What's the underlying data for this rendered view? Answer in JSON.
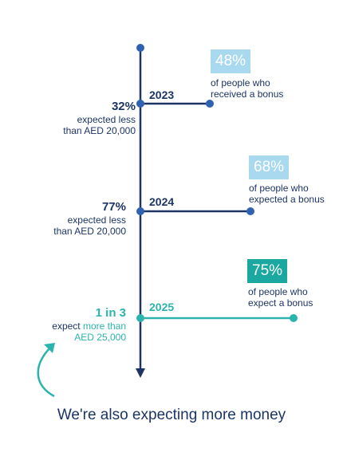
{
  "colors": {
    "navy": "#1d3565",
    "blue": "#2f63b2",
    "light_box": "#a8d9ef",
    "teal": "#2bb3ad",
    "teal_box": "#1aa8a0"
  },
  "timeline": [
    {
      "year": "2023",
      "left_stat": "32%",
      "left_line1": "expected less",
      "left_line2": "than AED 20,000",
      "right_pct": "48%",
      "right_line1": "of people who",
      "right_line2": "received a bonus"
    },
    {
      "year": "2024",
      "left_stat": "77%",
      "left_line1": "expected less",
      "left_line2": "than AED 20,000",
      "right_pct": "68%",
      "right_line1": "of people who",
      "right_line2": "expected a bonus"
    },
    {
      "year": "2025",
      "left_stat": "1 in 3",
      "left_line1_a": "expect ",
      "left_line1_b": "more than",
      "left_line2": "AED 25,000",
      "right_pct": "75%",
      "right_line1": "of people who",
      "right_line2": "expect a bonus"
    }
  ],
  "heading": "We're also expecting more money",
  "icons": {
    "arrow": "curved-arrow-icon"
  }
}
